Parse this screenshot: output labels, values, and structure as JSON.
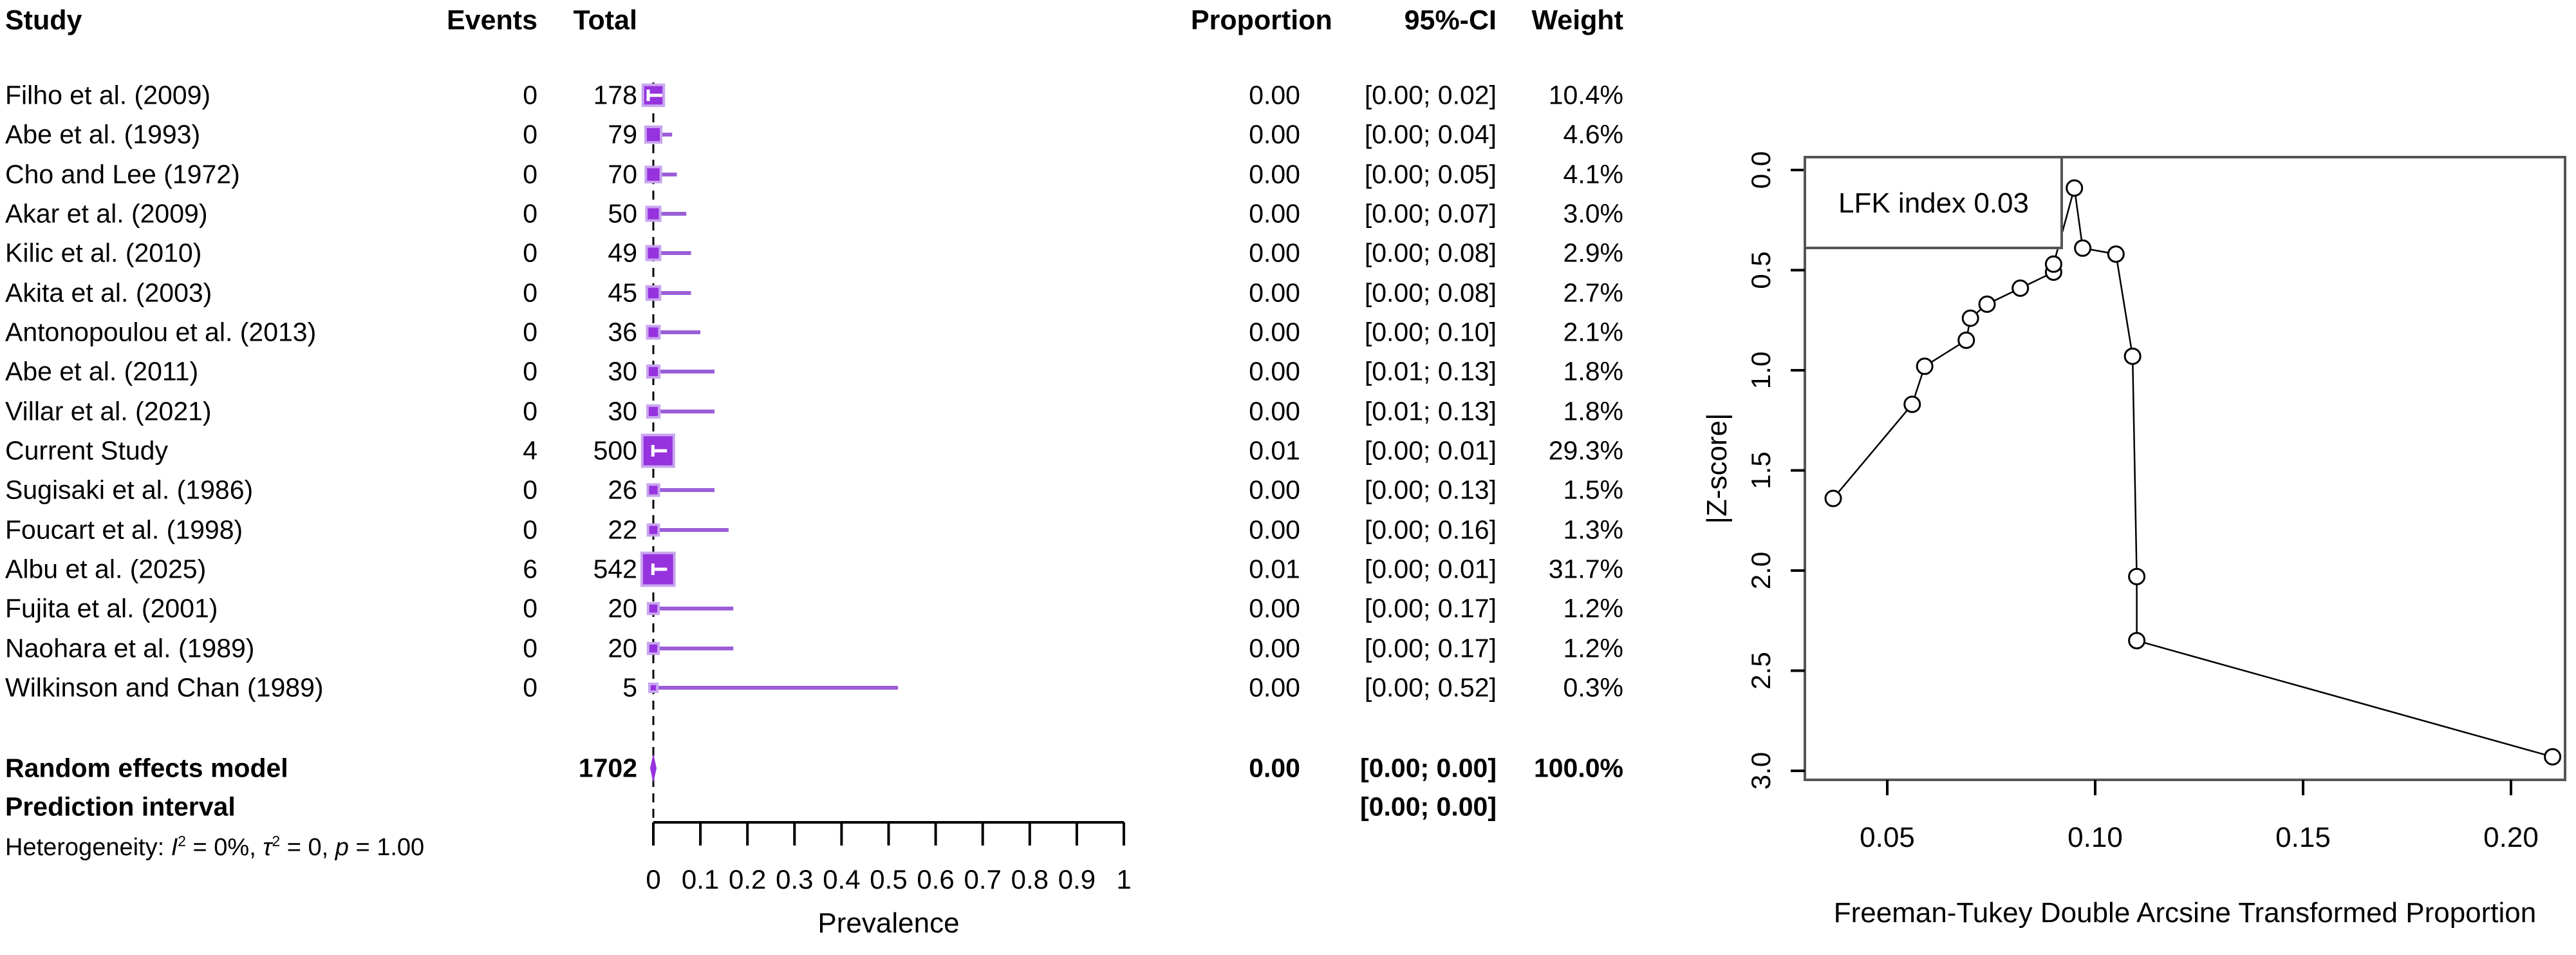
{
  "forest": {
    "headers": {
      "study": "Study",
      "events": "Events",
      "total": "Total",
      "proportion": "Proportion",
      "ci": "95%-CI",
      "weight": "Weight"
    },
    "summary": {
      "label": "Random effects model",
      "total": "1702",
      "proportion": "0.00",
      "ci": "[0.00; 0.00]",
      "weight": "100.0%"
    },
    "prediction": {
      "label": "Prediction interval",
      "ci": "[0.00; 0.00]"
    },
    "heterogeneity_parts": [
      {
        "text": "Heterogeneity: "
      },
      {
        "text": "I",
        "italic": true
      },
      {
        "text": "2",
        "sup": true
      },
      {
        "text": " = 0%, "
      },
      {
        "text": "τ",
        "italic": true
      },
      {
        "text": "2",
        "sup": true
      },
      {
        "text": " = 0, "
      },
      {
        "text": "p",
        "italic": true
      },
      {
        "text": " = 1.00"
      }
    ],
    "axis_label": "Prevalence",
    "axis_ticks": [
      "0",
      "0.1",
      "0.2",
      "0.3",
      "0.4",
      "0.5",
      "0.6",
      "0.7",
      "0.8",
      "0.9",
      "1"
    ],
    "colors": {
      "square_fill": "#9632DE",
      "square_border": "#C9A6EE",
      "ci_line": "#9B5ED8",
      "ref_line": "#000000",
      "box_line": "#555555"
    }
  },
  "doi": {
    "legend_label": "LFK index 0.03",
    "ylabel": "|Z-score|",
    "xlabel": "Freeman-Tukey Double Arcsine Transformed Proportion",
    "yticks": [
      "0.0",
      "0.5",
      "1.0",
      "1.5",
      "2.0",
      "2.5",
      "3.0"
    ],
    "xticks": [
      "0.05",
      "0.10",
      "0.15",
      "0.20"
    ]
  },
  "chart_data": [
    {
      "type": "forest",
      "title": "Forest plot of prevalence meta-analysis (random effects)",
      "xlabel": "Prevalence",
      "xlim": [
        0,
        1
      ],
      "xticks": [
        0,
        0.1,
        0.2,
        0.3,
        0.4,
        0.5,
        0.6,
        0.7,
        0.8,
        0.9,
        1
      ],
      "studies": [
        {
          "study": "Filho et al. (2009)",
          "events": "0",
          "total": "178",
          "proportion": 0.0,
          "ci_lower": 0.0,
          "ci_upper": 0.02,
          "weight": 10.4,
          "proportion_label": "0.00",
          "ci_label": "[0.00; 0.02]",
          "weight_label": "10.4%"
        },
        {
          "study": "Abe et al. (1993)",
          "events": "0",
          "total": "79",
          "proportion": 0.0,
          "ci_lower": 0.0,
          "ci_upper": 0.04,
          "weight": 4.6,
          "proportion_label": "0.00",
          "ci_label": "[0.00; 0.04]",
          "weight_label": "4.6%"
        },
        {
          "study": "Cho and Lee (1972)",
          "events": "0",
          "total": "70",
          "proportion": 0.0,
          "ci_lower": 0.0,
          "ci_upper": 0.05,
          "weight": 4.1,
          "proportion_label": "0.00",
          "ci_label": "[0.00; 0.05]",
          "weight_label": "4.1%"
        },
        {
          "study": "Akar et al. (2009)",
          "events": "0",
          "total": "50",
          "proportion": 0.0,
          "ci_lower": 0.0,
          "ci_upper": 0.07,
          "weight": 3.0,
          "proportion_label": "0.00",
          "ci_label": "[0.00; 0.07]",
          "weight_label": "3.0%"
        },
        {
          "study": "Kilic et al. (2010)",
          "events": "0",
          "total": "49",
          "proportion": 0.0,
          "ci_lower": 0.0,
          "ci_upper": 0.08,
          "weight": 2.9,
          "proportion_label": "0.00",
          "ci_label": "[0.00; 0.08]",
          "weight_label": "2.9%"
        },
        {
          "study": "Akita et al. (2003)",
          "events": "0",
          "total": "45",
          "proportion": 0.0,
          "ci_lower": 0.0,
          "ci_upper": 0.08,
          "weight": 2.7,
          "proportion_label": "0.00",
          "ci_label": "[0.00; 0.08]",
          "weight_label": "2.7%"
        },
        {
          "study": "Antonopoulou et al. (2013)",
          "events": "0",
          "total": "36",
          "proportion": 0.0,
          "ci_lower": 0.0,
          "ci_upper": 0.1,
          "weight": 2.1,
          "proportion_label": "0.00",
          "ci_label": "[0.00; 0.10]",
          "weight_label": "2.1%"
        },
        {
          "study": "Abe et al. (2011)",
          "events": "0",
          "total": "30",
          "proportion": 0.0,
          "ci_lower": 0.01,
          "ci_upper": 0.13,
          "weight": 1.8,
          "proportion_label": "0.00",
          "ci_label": "[0.01; 0.13]",
          "weight_label": "1.8%"
        },
        {
          "study": "Villar et al. (2021)",
          "events": "0",
          "total": "30",
          "proportion": 0.0,
          "ci_lower": 0.01,
          "ci_upper": 0.13,
          "weight": 1.8,
          "proportion_label": "0.00",
          "ci_label": "[0.01; 0.13]",
          "weight_label": "1.8%"
        },
        {
          "study": "Current Study",
          "events": "4",
          "total": "500",
          "proportion": 0.01,
          "ci_lower": 0.0,
          "ci_upper": 0.01,
          "weight": 29.3,
          "proportion_label": "0.01",
          "ci_label": "[0.00; 0.01]",
          "weight_label": "29.3%"
        },
        {
          "study": "Sugisaki et al. (1986)",
          "events": "0",
          "total": "26",
          "proportion": 0.0,
          "ci_lower": 0.0,
          "ci_upper": 0.13,
          "weight": 1.5,
          "proportion_label": "0.00",
          "ci_label": "[0.00; 0.13]",
          "weight_label": "1.5%"
        },
        {
          "study": "Foucart et al. (1998)",
          "events": "0",
          "total": "22",
          "proportion": 0.0,
          "ci_lower": 0.0,
          "ci_upper": 0.16,
          "weight": 1.3,
          "proportion_label": "0.00",
          "ci_label": "[0.00; 0.16]",
          "weight_label": "1.3%"
        },
        {
          "study": "Albu et al. (2025)",
          "events": "6",
          "total": "542",
          "proportion": 0.01,
          "ci_lower": 0.0,
          "ci_upper": 0.01,
          "weight": 31.7,
          "proportion_label": "0.01",
          "ci_label": "[0.00; 0.01]",
          "weight_label": "31.7%"
        },
        {
          "study": "Fujita et al. (2001)",
          "events": "0",
          "total": "20",
          "proportion": 0.0,
          "ci_lower": 0.0,
          "ci_upper": 0.17,
          "weight": 1.2,
          "proportion_label": "0.00",
          "ci_label": "[0.00; 0.17]",
          "weight_label": "1.2%"
        },
        {
          "study": "Naohara et al. (1989)",
          "events": "0",
          "total": "20",
          "proportion": 0.0,
          "ci_lower": 0.0,
          "ci_upper": 0.17,
          "weight": 1.2,
          "proportion_label": "0.00",
          "ci_label": "[0.00; 0.17]",
          "weight_label": "1.2%"
        },
        {
          "study": "Wilkinson and Chan (1989)",
          "events": "0",
          "total": "5",
          "proportion": 0.0,
          "ci_lower": 0.0,
          "ci_upper": 0.52,
          "weight": 0.3,
          "proportion_label": "0.00",
          "ci_label": "[0.00; 0.52]",
          "weight_label": "0.3%"
        }
      ],
      "summary": {
        "study": "Random effects model",
        "total": 1702,
        "proportion": 0.0,
        "ci_lower": 0.0,
        "ci_upper": 0.0,
        "weight": 100.0
      },
      "prediction_interval": {
        "ci_lower": 0.0,
        "ci_upper": 0.0
      },
      "heterogeneity": "Heterogeneity: I² = 0%, τ² = 0, p = 1.00"
    },
    {
      "type": "scatter",
      "title": "Doi plot",
      "legend": "LFK index 0.03",
      "xlabel": "Freeman-Tukey Double Arcsine Transformed Proportion",
      "ylabel": "|Z-score|",
      "xlim": [
        0.03,
        0.22
      ],
      "ylim": [
        3.0,
        0.0
      ],
      "xticks": [
        0.05,
        0.1,
        0.15,
        0.2
      ],
      "yticks": [
        0.0,
        0.5,
        1.0,
        1.5,
        2.0,
        2.5,
        3.0
      ],
      "points": [
        [
          0.037,
          1.64
        ],
        [
          0.056,
          1.17
        ],
        [
          0.059,
          0.98
        ],
        [
          0.069,
          0.85
        ],
        [
          0.07,
          0.74
        ],
        [
          0.074,
          0.67
        ],
        [
          0.082,
          0.59
        ],
        [
          0.09,
          0.51
        ],
        [
          0.09,
          0.47
        ],
        [
          0.095,
          0.09
        ],
        [
          0.097,
          0.39
        ],
        [
          0.105,
          0.42
        ],
        [
          0.109,
          0.93
        ],
        [
          0.11,
          2.03
        ],
        [
          0.11,
          2.35
        ],
        [
          0.21,
          2.93
        ]
      ]
    }
  ]
}
